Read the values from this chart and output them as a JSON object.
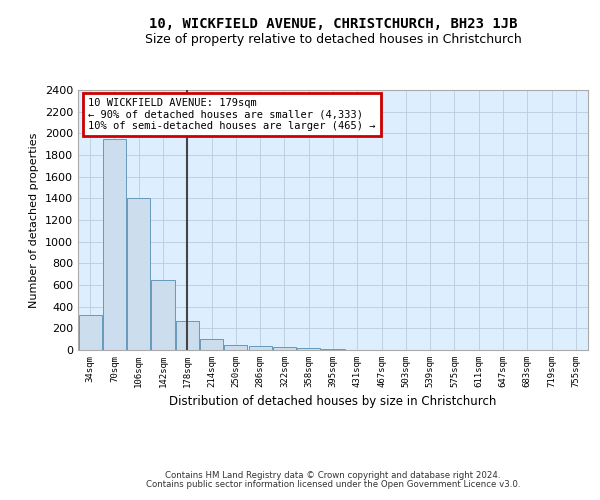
{
  "title1": "10, WICKFIELD AVENUE, CHRISTCHURCH, BH23 1JB",
  "title2": "Size of property relative to detached houses in Christchurch",
  "xlabel": "Distribution of detached houses by size in Christchurch",
  "ylabel": "Number of detached properties",
  "footnote1": "Contains HM Land Registry data © Crown copyright and database right 2024.",
  "footnote2": "Contains public sector information licensed under the Open Government Licence v3.0.",
  "bin_labels": [
    "34sqm",
    "70sqm",
    "106sqm",
    "142sqm",
    "178sqm",
    "214sqm",
    "250sqm",
    "286sqm",
    "322sqm",
    "358sqm",
    "395sqm",
    "431sqm",
    "467sqm",
    "503sqm",
    "539sqm",
    "575sqm",
    "611sqm",
    "647sqm",
    "683sqm",
    "719sqm",
    "755sqm"
  ],
  "bar_values": [
    320,
    1950,
    1400,
    650,
    270,
    100,
    50,
    40,
    25,
    15,
    5,
    3,
    2,
    1,
    0,
    0,
    0,
    0,
    0,
    0,
    0
  ],
  "bar_color": "#ccdded",
  "bar_edge_color": "#6699bb",
  "vline_index": 4,
  "vline_color": "#444444",
  "annotation_line1": "10 WICKFIELD AVENUE: 179sqm",
  "annotation_line2": "← 90% of detached houses are smaller (4,333)",
  "annotation_line3": "10% of semi-detached houses are larger (465) →",
  "annotation_box_facecolor": "#ffffff",
  "annotation_box_edgecolor": "#cc0000",
  "ylim": [
    0,
    2400
  ],
  "yticks": [
    0,
    200,
    400,
    600,
    800,
    1000,
    1200,
    1400,
    1600,
    1800,
    2000,
    2200,
    2400
  ],
  "grid_color": "#bbccdd",
  "bg_color": "#ddeeff",
  "fig_bg_color": "#ffffff",
  "title1_fontsize": 10,
  "title2_fontsize": 9
}
